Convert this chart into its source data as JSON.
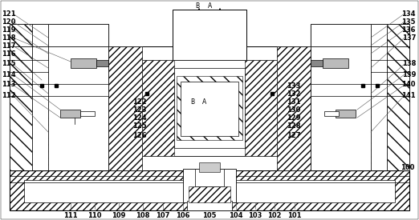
{
  "fig_w": 5.22,
  "fig_h": 2.75,
  "dpi": 100,
  "bg": "#ffffff",
  "lc": "#000000",
  "labels_left": [
    "121",
    "120",
    "119",
    "118",
    "117",
    "116",
    "115",
    "114",
    "113",
    "112"
  ],
  "labels_right": [
    "134",
    "135",
    "136",
    "137",
    "138",
    "139",
    "140",
    "141"
  ],
  "labels_mid_left": [
    "122",
    "123",
    "124",
    "125",
    "126"
  ],
  "labels_mid_right": [
    "133",
    "132",
    "131",
    "130",
    "129",
    "128",
    "127"
  ],
  "labels_bottom": [
    "111",
    "110",
    "109",
    "108",
    "107",
    "106",
    "105",
    "104",
    "103",
    "102",
    "101"
  ]
}
